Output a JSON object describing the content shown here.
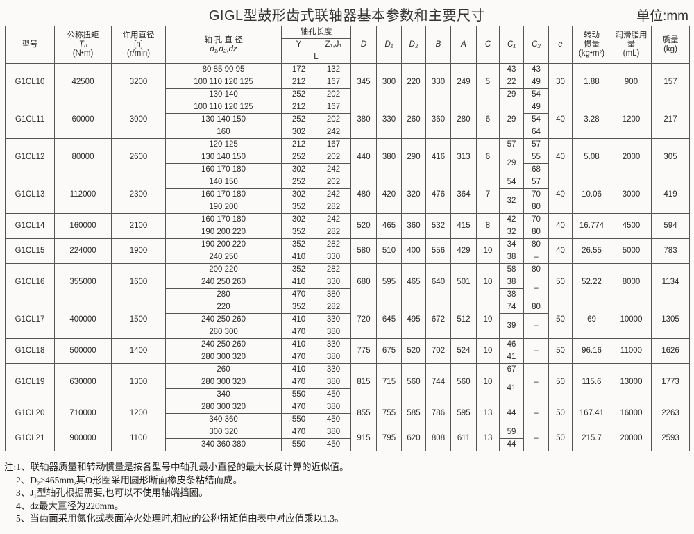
{
  "title": "GIGL型鼓形齿式联轴器基本参数和主要尺寸",
  "unit": "单位:mm",
  "header": {
    "model": "型号",
    "torque": [
      "公称扭矩",
      "Tₙ",
      "(N•m)"
    ],
    "speed": [
      "许用直径",
      "[n]",
      "(r/min)"
    ],
    "bore": [
      "轴 孔 直 径",
      "d₁,d₂,dz"
    ],
    "length": "轴孔长度",
    "length_y": "Y",
    "length_z": "Z₁,J₁",
    "length_l": "L",
    "D": "D",
    "D1": "D₁",
    "D2": "D₂",
    "B": "B",
    "A": "A",
    "C": "C",
    "C1": "C₁",
    "C2": "C₂",
    "e": "e",
    "inertia": [
      "转动",
      "惯量",
      "(kg•m²)"
    ],
    "grease": [
      "润滑脂用",
      "量",
      "(mL)"
    ],
    "mass": [
      "质量",
      "(kg)"
    ]
  },
  "rows": [
    {
      "model": "G1CL10",
      "torque": "42500",
      "speed": "3200",
      "bores": [
        [
          "80 85 90 95",
          "172",
          "132"
        ],
        [
          "100 110 120 125",
          "212",
          "167"
        ],
        [
          "130 140",
          "252",
          "202"
        ]
      ],
      "D": "345",
      "D1": "300",
      "D2": "220",
      "B": "330",
      "A": "249",
      "C": "5",
      "C1": [
        {
          "v": "43",
          "n": 1
        },
        {
          "v": "22",
          "n": 1
        },
        {
          "v": "29",
          "n": 1
        }
      ],
      "C2": [
        {
          "v": "43",
          "n": 1
        },
        {
          "v": "49",
          "n": 1
        },
        {
          "v": "54",
          "n": 1
        }
      ],
      "e": "30",
      "inertia": "1.88",
      "grease": "900",
      "mass": "157"
    },
    {
      "model": "G1CL11",
      "torque": "60000",
      "speed": "3000",
      "bores": [
        [
          "100 110 120 125",
          "212",
          "167"
        ],
        [
          "130 140 150",
          "252",
          "202"
        ],
        [
          "160",
          "302",
          "242"
        ]
      ],
      "D": "380",
      "D1": "330",
      "D2": "260",
      "B": "360",
      "A": "280",
      "C": "6",
      "C1": [
        {
          "v": "29",
          "n": 3
        }
      ],
      "C2": [
        {
          "v": "49",
          "n": 1
        },
        {
          "v": "54",
          "n": 1
        },
        {
          "v": "64",
          "n": 1
        }
      ],
      "e": "40",
      "inertia": "3.28",
      "grease": "1200",
      "mass": "217"
    },
    {
      "model": "G1CL12",
      "torque": "80000",
      "speed": "2600",
      "bores": [
        [
          "120 125",
          "212",
          "167"
        ],
        [
          "130 140 150",
          "252",
          "202"
        ],
        [
          "160 170 180",
          "302",
          "242"
        ]
      ],
      "D": "440",
      "D1": "380",
      "D2": "290",
      "B": "416",
      "A": "313",
      "C": "6",
      "C1": [
        {
          "v": "57",
          "n": 1
        },
        {
          "v": "29",
          "n": 2
        }
      ],
      "C2": [
        {
          "v": "57",
          "n": 1
        },
        {
          "v": "55",
          "n": 1
        },
        {
          "v": "68",
          "n": 1
        }
      ],
      "e": "40",
      "inertia": "5.08",
      "grease": "2000",
      "mass": "305"
    },
    {
      "model": "G1CL13",
      "torque": "112000",
      "speed": "2300",
      "bores": [
        [
          "140 150",
          "252",
          "202"
        ],
        [
          "160 170 180",
          "302",
          "242"
        ],
        [
          "190 200",
          "352",
          "282"
        ]
      ],
      "D": "480",
      "D1": "420",
      "D2": "320",
      "B": "476",
      "A": "364",
      "C": "7",
      "C1": [
        {
          "v": "54",
          "n": 1
        },
        {
          "v": "32",
          "n": 2
        }
      ],
      "C2": [
        {
          "v": "57",
          "n": 1
        },
        {
          "v": "70",
          "n": 1
        },
        {
          "v": "80",
          "n": 1
        }
      ],
      "e": "40",
      "inertia": "10.06",
      "grease": "3000",
      "mass": "419"
    },
    {
      "model": "G1CL14",
      "torque": "160000",
      "speed": "2100",
      "bores": [
        [
          "160 170 180",
          "302",
          "242"
        ],
        [
          "190 200 220",
          "352",
          "282"
        ]
      ],
      "D": "520",
      "D1": "465",
      "D2": "360",
      "B": "532",
      "A": "415",
      "C": "8",
      "C1": [
        {
          "v": "42",
          "n": 1
        },
        {
          "v": "32",
          "n": 1
        }
      ],
      "C2": [
        {
          "v": "70",
          "n": 1
        },
        {
          "v": "80",
          "n": 1
        }
      ],
      "e": "40",
      "inertia": "16.774",
      "grease": "4500",
      "mass": "594"
    },
    {
      "model": "G1CL15",
      "torque": "224000",
      "speed": "1900",
      "bores": [
        [
          "190 200 220",
          "352",
          "282"
        ],
        [
          "240 250",
          "410",
          "330"
        ]
      ],
      "D": "580",
      "D1": "510",
      "D2": "400",
      "B": "556",
      "A": "429",
      "C": "10",
      "C1": [
        {
          "v": "34",
          "n": 1
        },
        {
          "v": "38",
          "n": 1
        }
      ],
      "C2": [
        {
          "v": "80",
          "n": 1
        },
        {
          "v": "–",
          "n": 1
        }
      ],
      "e": "40",
      "inertia": "26.55",
      "grease": "5000",
      "mass": "783"
    },
    {
      "model": "G1CL16",
      "torque": "355000",
      "speed": "1600",
      "bores": [
        [
          "200 220",
          "352",
          "282"
        ],
        [
          "240 250 260",
          "410",
          "330"
        ],
        [
          "280",
          "470",
          "380"
        ]
      ],
      "D": "680",
      "D1": "595",
      "D2": "465",
      "B": "640",
      "A": "501",
      "C": "10",
      "C1": [
        {
          "v": "58",
          "n": 1
        },
        {
          "v": "38",
          "n": 1
        },
        {
          "v": "38",
          "n": 1
        }
      ],
      "C2": [
        {
          "v": "80",
          "n": 1
        },
        {
          "v": "–",
          "n": 2
        }
      ],
      "e": "50",
      "inertia": "52.22",
      "grease": "8000",
      "mass": "1134"
    },
    {
      "model": "G1CL17",
      "torque": "400000",
      "speed": "1500",
      "bores": [
        [
          "220",
          "352",
          "282"
        ],
        [
          "240 250 260",
          "410",
          "330"
        ],
        [
          "280 300",
          "470",
          "380"
        ]
      ],
      "D": "720",
      "D1": "645",
      "D2": "495",
      "B": "672",
      "A": "512",
      "C": "10",
      "C1": [
        {
          "v": "74",
          "n": 1
        },
        {
          "v": "39",
          "n": 2
        }
      ],
      "C2": [
        {
          "v": "80",
          "n": 1
        },
        {
          "v": "–",
          "n": 2
        }
      ],
      "e": "50",
      "inertia": "69",
      "grease": "10000",
      "mass": "1305"
    },
    {
      "model": "G1CL18",
      "torque": "500000",
      "speed": "1400",
      "bores": [
        [
          "240 250 260",
          "410",
          "330"
        ],
        [
          "280 300 320",
          "470",
          "380"
        ]
      ],
      "D": "775",
      "D1": "675",
      "D2": "520",
      "B": "702",
      "A": "524",
      "C": "10",
      "C1": [
        {
          "v": "46",
          "n": 1
        },
        {
          "v": "41",
          "n": 1
        }
      ],
      "C2": [
        {
          "v": "–",
          "n": 2
        }
      ],
      "e": "50",
      "inertia": "96.16",
      "grease": "11000",
      "mass": "1626"
    },
    {
      "model": "G1CL19",
      "torque": "630000",
      "speed": "1300",
      "bores": [
        [
          "260",
          "410",
          "330"
        ],
        [
          "280 300 320",
          "470",
          "380"
        ],
        [
          "340",
          "550",
          "450"
        ]
      ],
      "D": "815",
      "D1": "715",
      "D2": "560",
      "B": "744",
      "A": "560",
      "C": "10",
      "C1": [
        {
          "v": "67",
          "n": 1
        },
        {
          "v": "41",
          "n": 2
        }
      ],
      "C2": [
        {
          "v": "–",
          "n": 3
        }
      ],
      "e": "50",
      "inertia": "115.6",
      "grease": "13000",
      "mass": "1773"
    },
    {
      "model": "G1CL20",
      "torque": "710000",
      "speed": "1200",
      "bores": [
        [
          "280 300 320",
          "470",
          "380"
        ],
        [
          "340 360",
          "550",
          "450"
        ]
      ],
      "D": "855",
      "D1": "755",
      "D2": "585",
      "B": "786",
      "A": "595",
      "C": "13",
      "C1": [
        {
          "v": "44",
          "n": 2
        }
      ],
      "C2": [
        {
          "v": "–",
          "n": 2
        }
      ],
      "e": "50",
      "inertia": "167.41",
      "grease": "16000",
      "mass": "2263"
    },
    {
      "model": "G1CL21",
      "torque": "900000",
      "speed": "1100",
      "bores": [
        [
          "300 320",
          "470",
          "380"
        ],
        [
          "340 360 380",
          "550",
          "450"
        ]
      ],
      "D": "915",
      "D1": "795",
      "D2": "620",
      "B": "808",
      "A": "611",
      "C": "13",
      "C1": [
        {
          "v": "59",
          "n": 1
        },
        {
          "v": "44",
          "n": 1
        }
      ],
      "C2": [
        {
          "v": "–",
          "n": 2
        }
      ],
      "e": "50",
      "inertia": "215.7",
      "grease": "20000",
      "mass": "2593"
    }
  ],
  "notes": [
    "注:1、联轴器质量和转动惯量是按各型号中轴孔最小直径的最大长度计算的近似值。",
    "2、D₂≥465mm,其O形圈采用圆形断面橡皮条粘结而成。",
    "3、J₁型轴孔根据需要,也可以不使用轴端挡圈。",
    "4、dz最大直径为220mm。",
    "5、当齿面采用氮化或表面淬火处理时,相应的公称扭矩值由表中对应值乘以1.3。"
  ]
}
